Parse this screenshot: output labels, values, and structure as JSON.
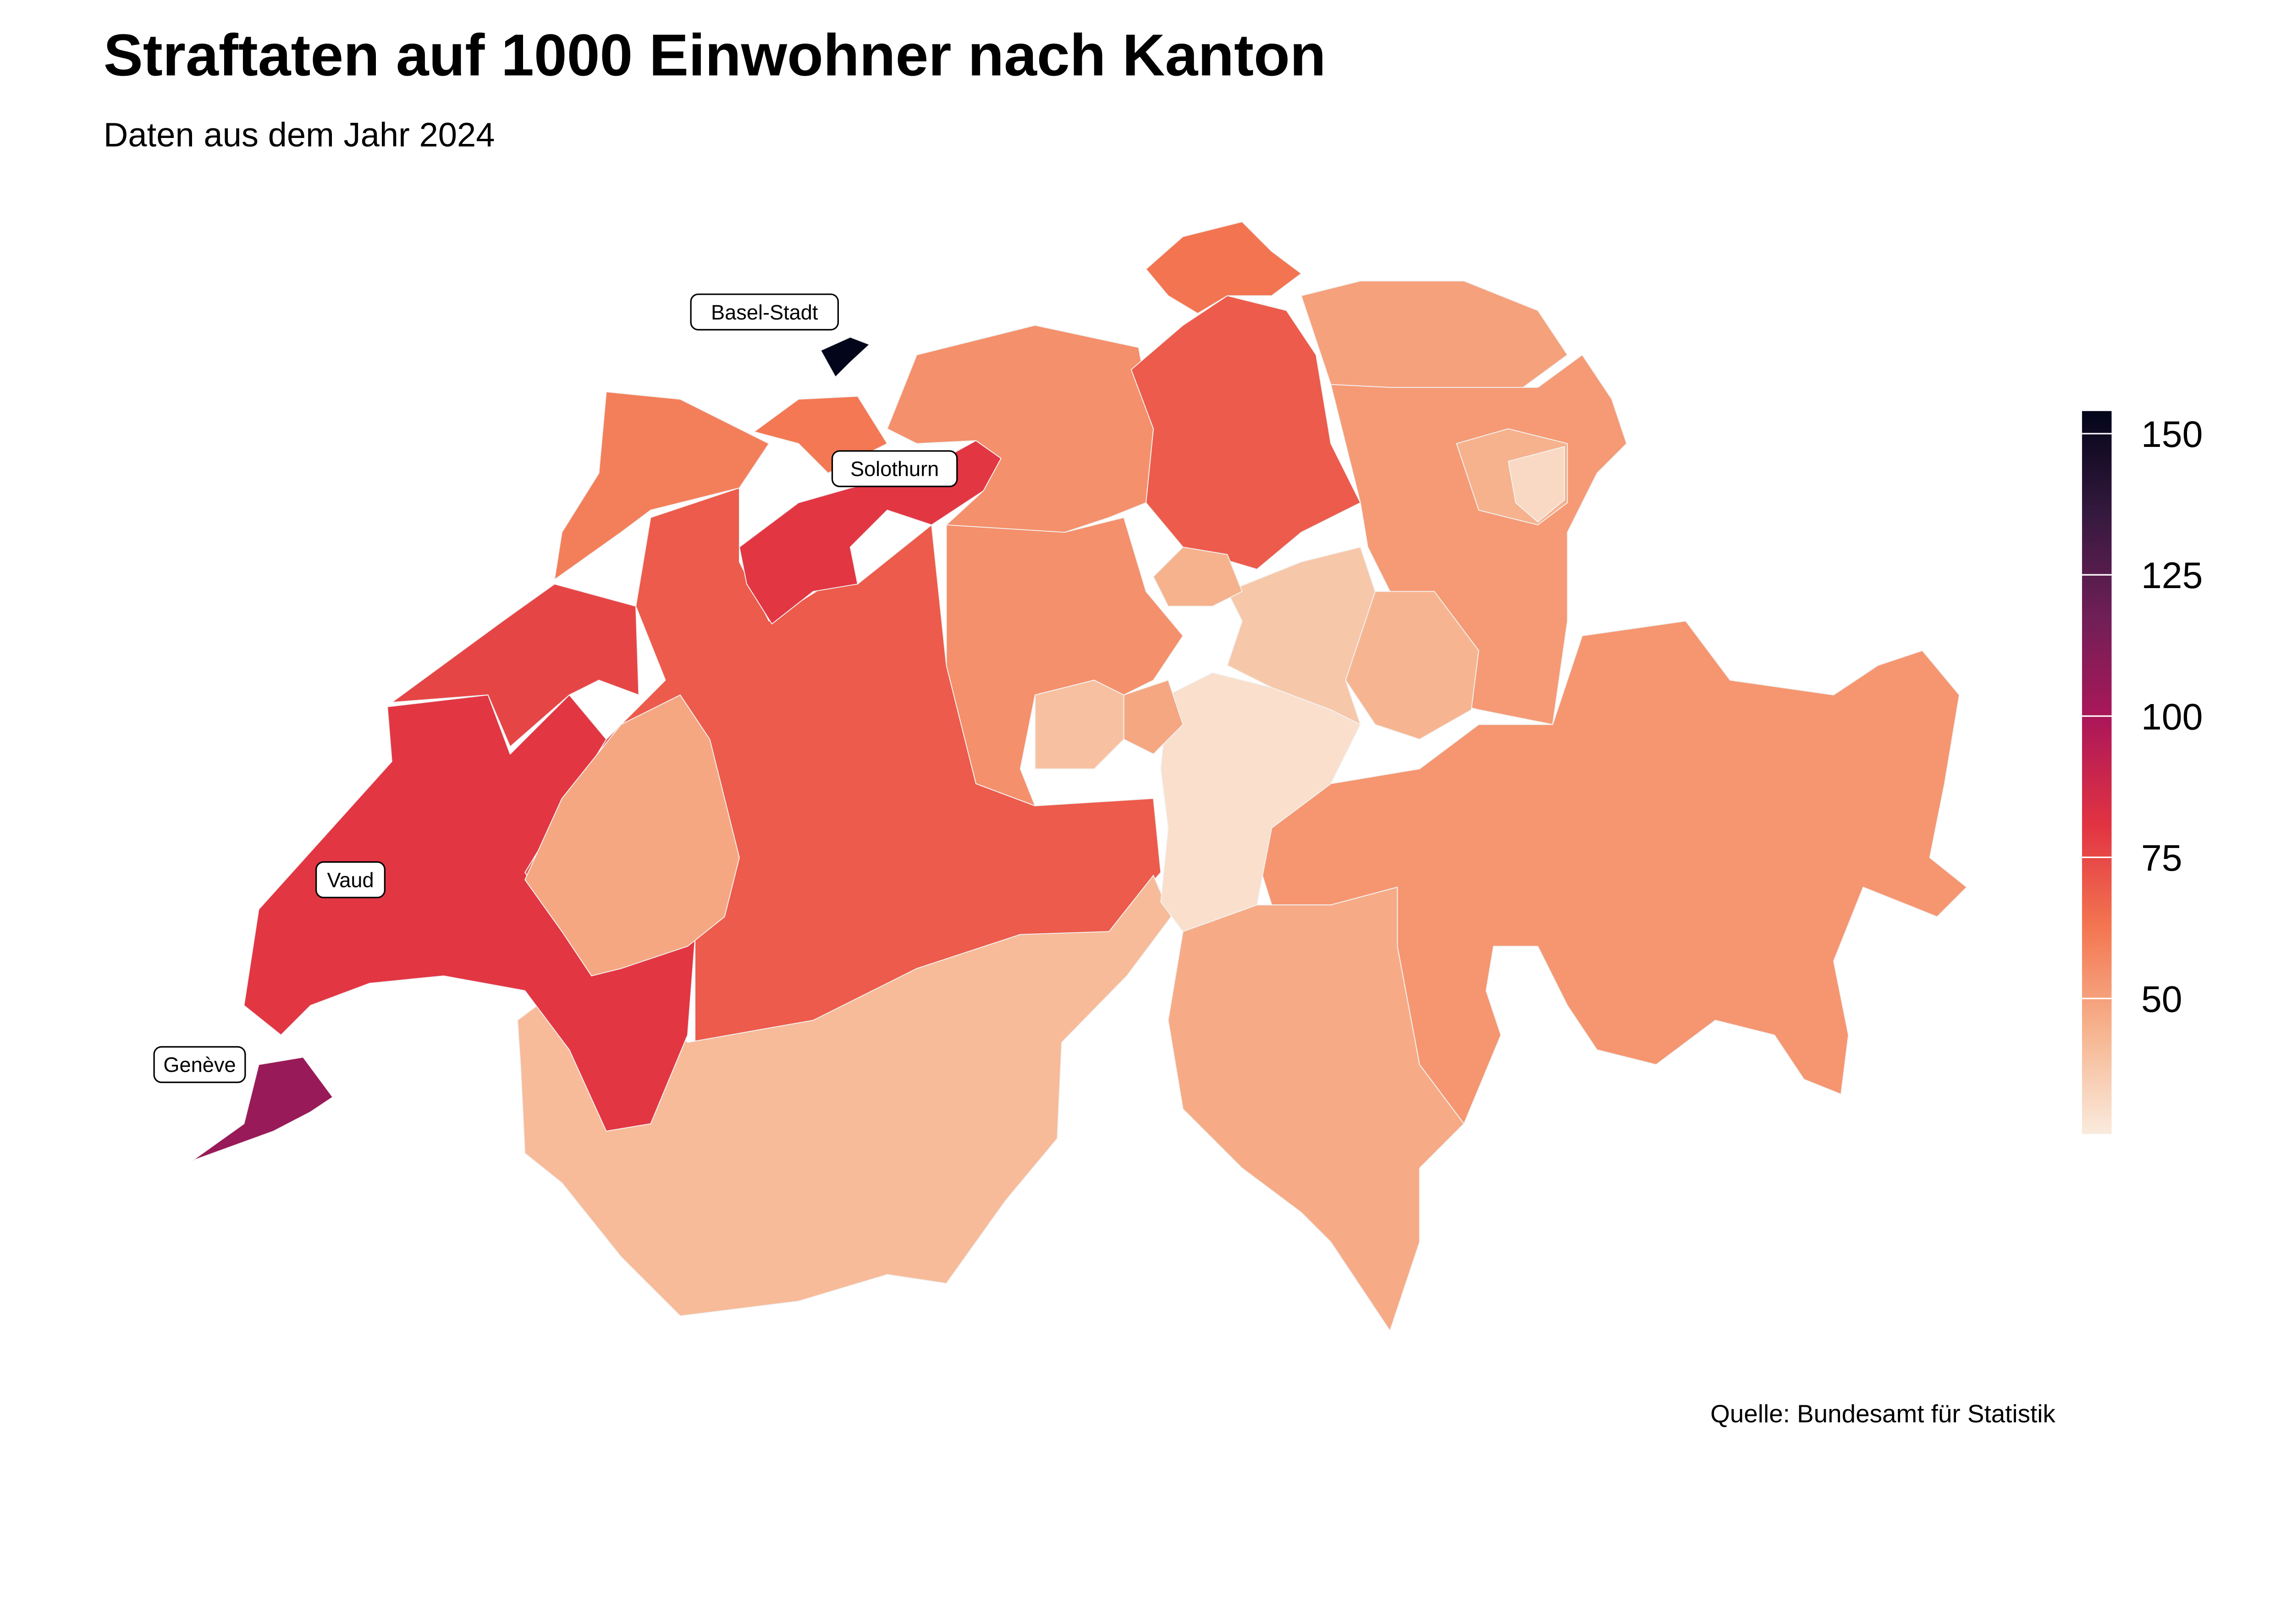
{
  "title": "Straftaten auf 1000 Einwohner nach Kanton",
  "subtitle": "Daten aus dem Jahr 2024",
  "caption": "Quelle: Bundesamt für Statistik",
  "chart_data": {
    "type": "choropleth",
    "title": "Straftaten auf 1000 Einwohner nach Kanton",
    "subtitle": "Daten aus dem Jahr 2024",
    "legend": {
      "position": "right",
      "ticks": [
        50,
        75,
        100,
        125,
        150
      ],
      "range": [
        26,
        154
      ]
    },
    "palette": [
      "#faebdd",
      "#f6b48f",
      "#f37651",
      "#e13342",
      "#ad1759",
      "#701f57",
      "#35193e",
      "#03051a"
    ],
    "labels": [
      "Basel-Stadt",
      "Solothurn",
      "Vaud",
      "Genève"
    ],
    "regions": [
      {
        "name": "Bern",
        "value": 70
      },
      {
        "name": "Valais",
        "value": 42
      },
      {
        "name": "Graubünden",
        "value": 53
      },
      {
        "name": "Vaud",
        "value": 80
      },
      {
        "name": "Genève",
        "value": 105
      },
      {
        "name": "Neuchâtel",
        "value": 76
      },
      {
        "name": "Jura",
        "value": 60
      },
      {
        "name": "Fribourg",
        "value": 48
      },
      {
        "name": "Basel-Landschaft",
        "value": 62
      },
      {
        "name": "Basel-Stadt",
        "value": 155
      },
      {
        "name": "Solothurn",
        "value": 80
      },
      {
        "name": "Aargau",
        "value": 55
      },
      {
        "name": "Zürich",
        "value": 70
      },
      {
        "name": "Schaffhausen",
        "value": 63
      },
      {
        "name": "Thurgau",
        "value": 50
      },
      {
        "name": "St. Gallen",
        "value": 52
      },
      {
        "name": "Appenzell Ausserrhoden",
        "value": 45
      },
      {
        "name": "Appenzell Innerrhoden",
        "value": 32
      },
      {
        "name": "Glarus",
        "value": 44
      },
      {
        "name": "Ticino",
        "value": 47
      },
      {
        "name": "Uri",
        "value": 30
      },
      {
        "name": "Schwyz",
        "value": 38
      },
      {
        "name": "Zug",
        "value": 45
      },
      {
        "name": "Luzern",
        "value": 55
      },
      {
        "name": "Obwalden",
        "value": 40
      },
      {
        "name": "Nidwalden",
        "value": 48
      }
    ]
  }
}
